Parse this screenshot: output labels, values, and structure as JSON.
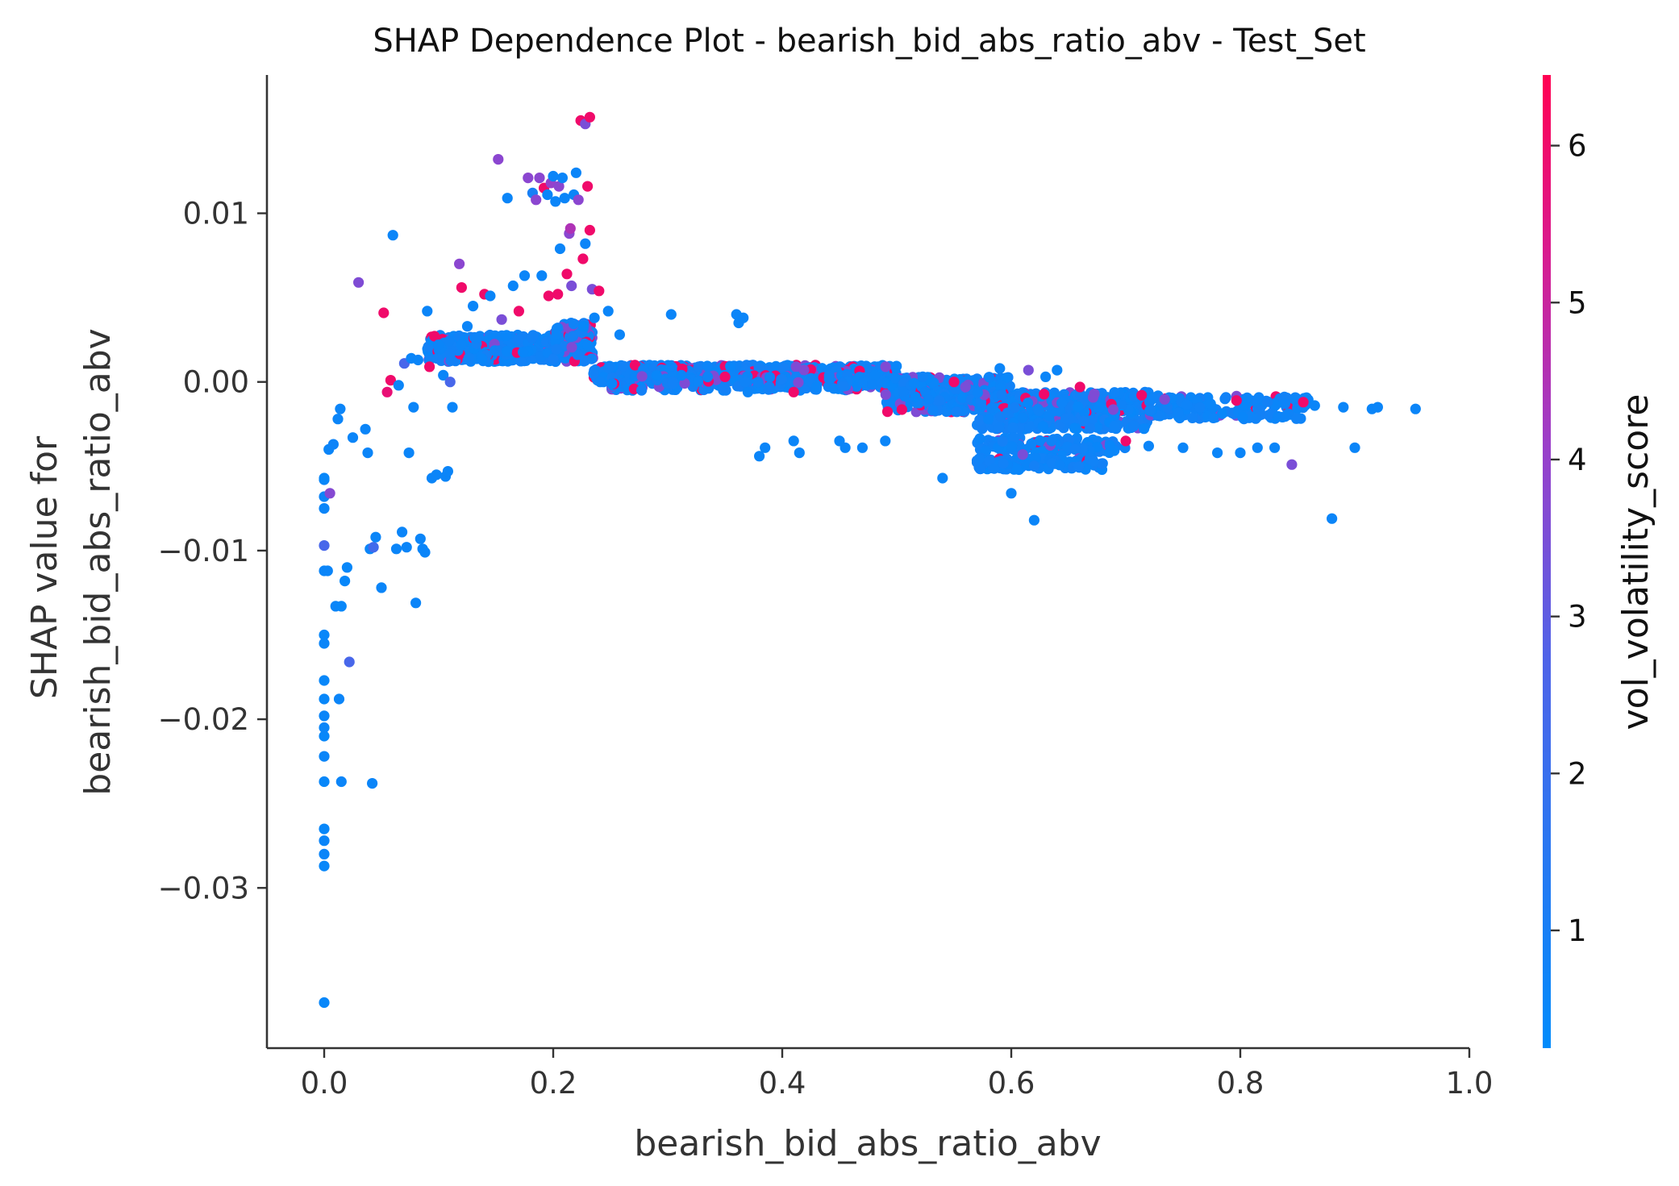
{
  "chart_data": {
    "type": "scatter",
    "title": "SHAP Dependence Plot - bearish_bid_abs_ratio_abv - Test_Set",
    "xlabel": "bearish_bid_abs_ratio_abv",
    "ylabel_lines": [
      "SHAP value for",
      "bearish_bid_abs_ratio_abv"
    ],
    "xlim": [
      -0.05,
      1.0
    ],
    "ylim": [
      -0.0395,
      0.0182
    ],
    "x_ticks": [
      0.0,
      0.2,
      0.4,
      0.6,
      0.8,
      1.0
    ],
    "x_tick_labels": [
      "0.0",
      "0.2",
      "0.4",
      "0.6",
      "0.8",
      "1.0"
    ],
    "y_ticks": [
      0.01,
      0.0,
      -0.01,
      -0.02,
      -0.03
    ],
    "y_tick_labels": [
      "0.01",
      "0.00",
      "−0.01",
      "−0.02",
      "−0.03"
    ],
    "grid": false,
    "colorbar": {
      "label": "vol_volatility_score",
      "range": [
        0.25,
        6.45
      ],
      "ticks": [
        1,
        2,
        3,
        4,
        5,
        6
      ],
      "tick_labels": [
        "1",
        "2",
        "3",
        "4",
        "5",
        "6"
      ],
      "colors": [
        "#008bfb",
        "#ff0052"
      ]
    },
    "points": [
      [
        0.0,
        -0.0368,
        0.5
      ],
      [
        0.0,
        -0.0287,
        0.5
      ],
      [
        0.0,
        -0.028,
        0.6
      ],
      [
        0.0,
        -0.0272,
        0.6
      ],
      [
        0.0,
        -0.0265,
        0.5
      ],
      [
        0.0,
        -0.0237,
        0.5
      ],
      [
        0.0,
        -0.0222,
        0.6
      ],
      [
        0.0,
        -0.021,
        0.5
      ],
      [
        0.0,
        -0.0205,
        0.6
      ],
      [
        0.0,
        -0.0198,
        0.6
      ],
      [
        0.0,
        -0.0188,
        0.5
      ],
      [
        0.0,
        -0.0177,
        0.5
      ],
      [
        0.0,
        -0.0155,
        0.6
      ],
      [
        0.0,
        -0.015,
        0.5
      ],
      [
        0.0,
        -0.0112,
        0.6
      ],
      [
        0.0,
        -0.0097,
        2.5
      ],
      [
        0.0,
        -0.0075,
        0.6
      ],
      [
        0.0,
        -0.0068,
        0.7
      ],
      [
        0.0,
        -0.0058,
        0.6
      ],
      [
        0.0,
        -0.0057,
        0.5
      ],
      [
        0.003,
        -0.0112,
        0.6
      ],
      [
        0.005,
        -0.0066,
        3.7
      ],
      [
        0.004,
        -0.004,
        0.6
      ],
      [
        0.008,
        -0.0037,
        0.7
      ],
      [
        0.01,
        -0.0133,
        0.6
      ],
      [
        0.012,
        -0.0022,
        0.6
      ],
      [
        0.013,
        -0.0188,
        0.6
      ],
      [
        0.014,
        -0.0016,
        0.6
      ],
      [
        0.015,
        -0.0237,
        0.6
      ],
      [
        0.015,
        -0.0133,
        0.5
      ],
      [
        0.018,
        -0.0118,
        0.5
      ],
      [
        0.02,
        -0.011,
        0.5
      ],
      [
        0.022,
        -0.0166,
        2.5
      ],
      [
        0.025,
        -0.0033,
        0.6
      ],
      [
        0.03,
        0.0059,
        3.6
      ],
      [
        0.036,
        -0.0028,
        0.6
      ],
      [
        0.038,
        -0.0042,
        0.6
      ],
      [
        0.04,
        -0.0099,
        0.6
      ],
      [
        0.042,
        -0.0238,
        0.6
      ],
      [
        0.043,
        -0.0098,
        2.3
      ],
      [
        0.045,
        -0.0092,
        0.6
      ],
      [
        0.05,
        -0.0122,
        0.6
      ],
      [
        0.052,
        0.0041,
        6.0
      ],
      [
        0.055,
        -0.0006,
        5.8
      ],
      [
        0.058,
        0.0001,
        6.0
      ],
      [
        0.06,
        0.0087,
        0.6
      ],
      [
        0.063,
        -0.0099,
        0.6
      ],
      [
        0.065,
        -0.0002,
        0.6
      ],
      [
        0.068,
        -0.0089,
        0.6
      ],
      [
        0.07,
        0.0011,
        2.5
      ],
      [
        0.072,
        -0.0098,
        0.6
      ],
      [
        0.074,
        -0.0042,
        0.6
      ],
      [
        0.076,
        0.0014,
        0.6
      ],
      [
        0.078,
        -0.0015,
        0.6
      ],
      [
        0.08,
        -0.0131,
        0.6
      ],
      [
        0.082,
        0.0013,
        0.6
      ],
      [
        0.084,
        -0.0093,
        0.6
      ],
      [
        0.086,
        -0.0099,
        0.6
      ],
      [
        0.088,
        -0.0101,
        0.6
      ],
      [
        0.09,
        0.0042,
        0.6
      ],
      [
        0.092,
        0.0009,
        6.0
      ],
      [
        0.094,
        -0.0057,
        0.6
      ],
      [
        0.098,
        -0.0055,
        0.6
      ],
      [
        0.1,
        0.0022,
        0.6
      ],
      [
        0.104,
        0.0004,
        0.6
      ],
      [
        0.106,
        -0.0056,
        0.6
      ],
      [
        0.108,
        -0.0053,
        0.6
      ],
      [
        0.11,
        0.0,
        2.5
      ],
      [
        0.112,
        -0.0015,
        0.6
      ],
      [
        0.118,
        0.007,
        3.8
      ],
      [
        0.12,
        0.0056,
        6.0
      ],
      [
        0.125,
        0.0033,
        0.6
      ],
      [
        0.13,
        0.0045,
        0.6
      ],
      [
        0.14,
        0.0052,
        6.0
      ],
      [
        0.145,
        0.0051,
        0.6
      ],
      [
        0.152,
        0.0132,
        3.8
      ],
      [
        0.155,
        0.0037,
        3.5
      ],
      [
        0.16,
        0.0109,
        0.6
      ],
      [
        0.165,
        0.0057,
        0.6
      ],
      [
        0.17,
        0.0042,
        6.0
      ],
      [
        0.175,
        0.0063,
        0.6
      ],
      [
        0.178,
        0.0121,
        3.8
      ],
      [
        0.182,
        0.0112,
        1.0
      ],
      [
        0.185,
        0.0108,
        3.8
      ],
      [
        0.188,
        0.0121,
        3.8
      ],
      [
        0.19,
        0.0063,
        0.6
      ],
      [
        0.192,
        0.0115,
        6.0
      ],
      [
        0.195,
        0.0111,
        0.6
      ],
      [
        0.196,
        0.0051,
        6.0
      ],
      [
        0.198,
        0.0118,
        4.0
      ],
      [
        0.2,
        0.0122,
        0.6
      ],
      [
        0.202,
        0.0107,
        0.6
      ],
      [
        0.204,
        0.0052,
        6.0
      ],
      [
        0.205,
        0.0116,
        3.8
      ],
      [
        0.206,
        0.0079,
        0.6
      ],
      [
        0.208,
        0.0121,
        0.6
      ],
      [
        0.21,
        0.0109,
        0.6
      ],
      [
        0.212,
        0.0064,
        6.0
      ],
      [
        0.214,
        0.0088,
        3.8
      ],
      [
        0.215,
        0.0091,
        4.5
      ],
      [
        0.216,
        0.0057,
        3.5
      ],
      [
        0.218,
        0.0111,
        0.6
      ],
      [
        0.22,
        0.0124,
        0.6
      ],
      [
        0.222,
        0.0108,
        3.8
      ],
      [
        0.224,
        0.0155,
        6.0
      ],
      [
        0.226,
        0.0073,
        6.0
      ],
      [
        0.228,
        0.0153,
        3.5
      ],
      [
        0.228,
        0.0082,
        0.6
      ],
      [
        0.23,
        0.0116,
        6.0
      ],
      [
        0.232,
        0.0157,
        6.0
      ],
      [
        0.232,
        0.009,
        6.0
      ],
      [
        0.234,
        0.0055,
        3.5
      ],
      [
        0.236,
        0.0038,
        0.6
      ],
      [
        0.24,
        0.0054,
        6.0
      ],
      [
        0.248,
        0.0042,
        0.6
      ],
      [
        0.258,
        0.0028,
        0.6
      ],
      [
        0.303,
        0.004,
        0.6
      ],
      [
        0.312,
        0.0004,
        0.6
      ],
      [
        0.35,
        0.0003,
        6.0
      ],
      [
        0.36,
        0.004,
        0.6
      ],
      [
        0.362,
        0.0035,
        0.6
      ],
      [
        0.366,
        0.0038,
        0.6
      ],
      [
        0.37,
        -0.0006,
        0.6
      ],
      [
        0.38,
        -0.0044,
        0.6
      ],
      [
        0.385,
        -0.0039,
        0.6
      ],
      [
        0.41,
        -0.0006,
        6.0
      ],
      [
        0.41,
        -0.0035,
        0.6
      ],
      [
        0.415,
        -0.0042,
        0.6
      ],
      [
        0.43,
        -0.0003,
        0.6
      ],
      [
        0.45,
        -0.0035,
        0.6
      ],
      [
        0.455,
        -0.0039,
        0.6
      ],
      [
        0.47,
        -0.0039,
        0.6
      ],
      [
        0.49,
        -0.0035,
        0.6
      ],
      [
        0.54,
        -0.0057,
        0.6
      ],
      [
        0.55,
        0.0,
        6.0
      ],
      [
        0.56,
        -0.0003,
        3.5
      ],
      [
        0.58,
        -0.0022,
        0.6
      ],
      [
        0.59,
        0.0008,
        0.6
      ],
      [
        0.6,
        -0.0066,
        0.6
      ],
      [
        0.61,
        -0.0043,
        3.5
      ],
      [
        0.615,
        0.0007,
        3.5
      ],
      [
        0.62,
        -0.0082,
        0.6
      ],
      [
        0.63,
        0.0003,
        0.6
      ],
      [
        0.64,
        0.0007,
        0.6
      ],
      [
        0.66,
        -0.0003,
        6.0
      ],
      [
        0.7,
        -0.0035,
        6.0
      ],
      [
        0.72,
        -0.0038,
        0.6
      ],
      [
        0.75,
        -0.0039,
        0.6
      ],
      [
        0.78,
        -0.0042,
        0.6
      ],
      [
        0.8,
        -0.0042,
        0.6
      ],
      [
        0.815,
        -0.0039,
        0.6
      ],
      [
        0.83,
        -0.0039,
        0.6
      ],
      [
        0.845,
        -0.0049,
        3.5
      ],
      [
        0.85,
        -0.0015,
        0.6
      ],
      [
        0.855,
        -0.0012,
        6.0
      ],
      [
        0.865,
        -0.0014,
        0.6
      ],
      [
        0.88,
        -0.0081,
        0.6
      ],
      [
        0.89,
        -0.0015,
        0.6
      ],
      [
        0.9,
        -0.0039,
        0.6
      ],
      [
        0.915,
        -0.0016,
        0.6
      ],
      [
        0.92,
        -0.0015,
        0.6
      ],
      [
        0.953,
        -0.0016,
        0.6
      ]
    ],
    "dense_regions": [
      {
        "x": [
          0.09,
          0.2
        ],
        "y": [
          0.0012,
          0.0028
        ],
        "n": 380,
        "magenta_share": 0.12
      },
      {
        "x": [
          0.2,
          0.235
        ],
        "y": [
          0.0012,
          0.0035
        ],
        "n": 160,
        "magenta_share": 0.2
      },
      {
        "x": [
          0.235,
          0.5
        ],
        "y": [
          0.0,
          0.001
        ],
        "n": 650,
        "magenta_share": 0.14
      },
      {
        "x": [
          0.25,
          0.5
        ],
        "y": [
          -0.0005,
          0.0004
        ],
        "n": 260,
        "magenta_share": 0.25
      },
      {
        "x": [
          0.49,
          0.6
        ],
        "y": [
          -0.0018,
          0.0003
        ],
        "n": 380,
        "magenta_share": 0.15
      },
      {
        "x": [
          0.57,
          0.72
        ],
        "y": [
          -0.0028,
          -0.0006
        ],
        "n": 420,
        "magenta_share": 0.1
      },
      {
        "x": [
          0.72,
          0.86
        ],
        "y": [
          -0.0022,
          -0.0008
        ],
        "n": 160,
        "magenta_share": 0.05
      },
      {
        "x": [
          0.57,
          0.7
        ],
        "y": [
          -0.0042,
          -0.0033
        ],
        "n": 130,
        "magenta_share": 0.12
      },
      {
        "x": [
          0.57,
          0.68
        ],
        "y": [
          -0.0052,
          -0.0045
        ],
        "n": 110,
        "magenta_share": 0.05
      }
    ]
  }
}
